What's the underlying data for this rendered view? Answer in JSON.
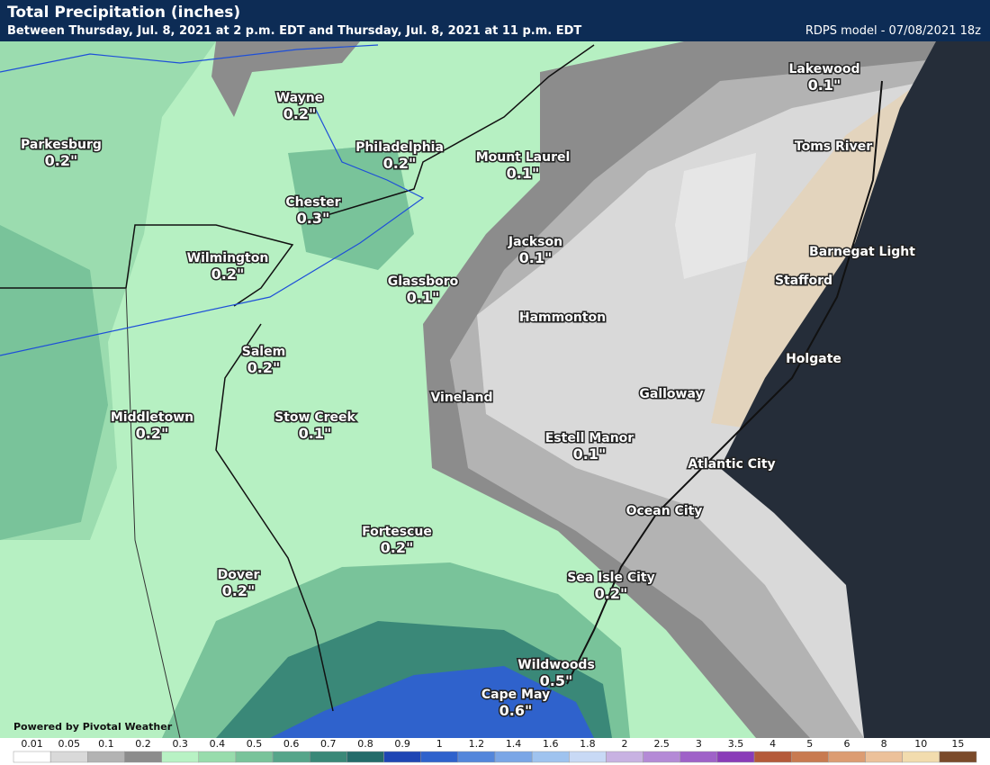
{
  "header": {
    "title": "Total Precipitation (inches)",
    "subtitle": "Between Thursday, Jul. 8, 2021 at 2 p.m. EDT and Thursday, Jul. 8, 2021 at 11 p.m. EDT",
    "model": "RDPS model - 07/08/2021 18z"
  },
  "places": [
    {
      "name": "Lakewood",
      "value": "0.1\""
    },
    {
      "name": "Wayne",
      "value": "0.2\""
    },
    {
      "name": "Parkesburg",
      "value": "0.2\""
    },
    {
      "name": "Philadelphia",
      "value": "0.2\""
    },
    {
      "name": "Mount Laurel",
      "value": "0.1\""
    },
    {
      "name": "Toms River"
    },
    {
      "name": "Chester",
      "value": "0.3\""
    },
    {
      "name": "Jackson",
      "value": "0.1\""
    },
    {
      "name": "Barnegat Light"
    },
    {
      "name": "Wilmington",
      "value": "0.2\""
    },
    {
      "name": "Stafford"
    },
    {
      "name": "Glassboro",
      "value": "0.1\""
    },
    {
      "name": "Hammonton"
    },
    {
      "name": "Salem",
      "value": "0.2\""
    },
    {
      "name": "Holgate"
    },
    {
      "name": "Vineland"
    },
    {
      "name": "Galloway"
    },
    {
      "name": "Middletown",
      "value": "0.2\""
    },
    {
      "name": "Stow Creek",
      "value": "0.1\""
    },
    {
      "name": "Estell Manor",
      "value": "0.1\""
    },
    {
      "name": "Atlantic City"
    },
    {
      "name": "Ocean City"
    },
    {
      "name": "Fortescue",
      "value": "0.2\""
    },
    {
      "name": "Dover",
      "value": "0.2\""
    },
    {
      "name": "Sea Isle City",
      "value": "0.2\""
    },
    {
      "name": "Wildwoods",
      "value": "0.5\""
    },
    {
      "name": "Cape May",
      "value": "0.6\""
    }
  ],
  "credit": "Powered by Pivotal Weather",
  "legend": {
    "labels": [
      "0.01",
      "0.05",
      "0.1",
      "0.2",
      "0.3",
      "0.4",
      "0.5",
      "0.6",
      "0.7",
      "0.8",
      "0.9",
      "1",
      "1.2",
      "1.4",
      "1.6",
      "1.8",
      "2",
      "2.5",
      "3",
      "3.5",
      "4",
      "5",
      "6",
      "8",
      "10",
      "15"
    ],
    "colors": [
      "#ffffff",
      "#d9d9d9",
      "#b3b3b3",
      "#8c8c8c",
      "#b8f2c4",
      "#98dcac",
      "#79c39a",
      "#56a58a",
      "#3a8878",
      "#246b6a",
      "#1f46b4",
      "#2f62cc",
      "#5386db",
      "#7aa6e6",
      "#9fc3ef",
      "#c8d9f5",
      "#c8b2e2",
      "#b48ad6",
      "#9f62c8",
      "#8a3cb8",
      "#b45a3a",
      "#c87a50",
      "#dc9c72",
      "#ecc19a",
      "#f2dcae",
      "#7a4a2a"
    ]
  }
}
